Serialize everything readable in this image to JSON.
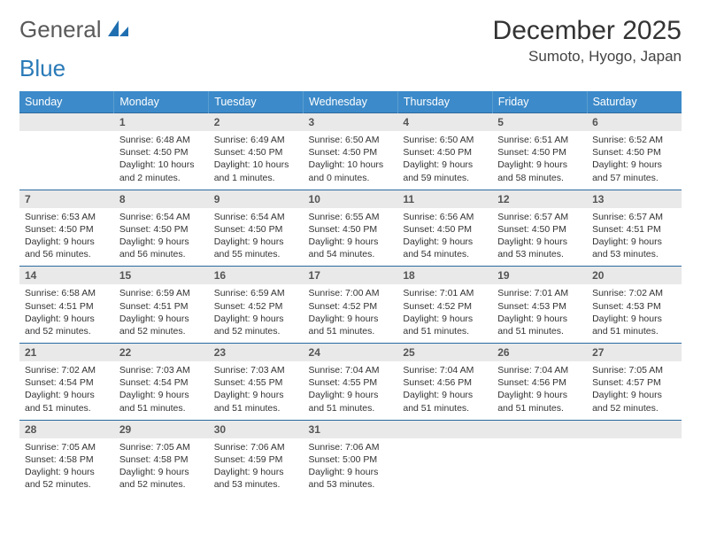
{
  "brand": {
    "part1": "General",
    "part2": "Blue"
  },
  "title": "December 2025",
  "location": "Sumoto, Hyogo, Japan",
  "colors": {
    "header_bg": "#3c8ac9",
    "header_text": "#ffffff",
    "daynum_bg": "#e9e9e9",
    "daynum_text": "#555555",
    "body_text": "#333333",
    "row_border": "#2a6aa0",
    "logo_gray": "#5a5a5a",
    "logo_blue": "#2a7ab8"
  },
  "typography": {
    "month_title_size": 30,
    "location_size": 17,
    "weekday_size": 12.5,
    "daynum_size": 12,
    "cell_body_size": 10.5
  },
  "weekdays": [
    "Sunday",
    "Monday",
    "Tuesday",
    "Wednesday",
    "Thursday",
    "Friday",
    "Saturday"
  ],
  "start_offset": 1,
  "days": [
    {
      "n": 1,
      "sunrise": "6:48 AM",
      "sunset": "4:50 PM",
      "daylight": "10 hours and 2 minutes."
    },
    {
      "n": 2,
      "sunrise": "6:49 AM",
      "sunset": "4:50 PM",
      "daylight": "10 hours and 1 minutes."
    },
    {
      "n": 3,
      "sunrise": "6:50 AM",
      "sunset": "4:50 PM",
      "daylight": "10 hours and 0 minutes."
    },
    {
      "n": 4,
      "sunrise": "6:50 AM",
      "sunset": "4:50 PM",
      "daylight": "9 hours and 59 minutes."
    },
    {
      "n": 5,
      "sunrise": "6:51 AM",
      "sunset": "4:50 PM",
      "daylight": "9 hours and 58 minutes."
    },
    {
      "n": 6,
      "sunrise": "6:52 AM",
      "sunset": "4:50 PM",
      "daylight": "9 hours and 57 minutes."
    },
    {
      "n": 7,
      "sunrise": "6:53 AM",
      "sunset": "4:50 PM",
      "daylight": "9 hours and 56 minutes."
    },
    {
      "n": 8,
      "sunrise": "6:54 AM",
      "sunset": "4:50 PM",
      "daylight": "9 hours and 56 minutes."
    },
    {
      "n": 9,
      "sunrise": "6:54 AM",
      "sunset": "4:50 PM",
      "daylight": "9 hours and 55 minutes."
    },
    {
      "n": 10,
      "sunrise": "6:55 AM",
      "sunset": "4:50 PM",
      "daylight": "9 hours and 54 minutes."
    },
    {
      "n": 11,
      "sunrise": "6:56 AM",
      "sunset": "4:50 PM",
      "daylight": "9 hours and 54 minutes."
    },
    {
      "n": 12,
      "sunrise": "6:57 AM",
      "sunset": "4:50 PM",
      "daylight": "9 hours and 53 minutes."
    },
    {
      "n": 13,
      "sunrise": "6:57 AM",
      "sunset": "4:51 PM",
      "daylight": "9 hours and 53 minutes."
    },
    {
      "n": 14,
      "sunrise": "6:58 AM",
      "sunset": "4:51 PM",
      "daylight": "9 hours and 52 minutes."
    },
    {
      "n": 15,
      "sunrise": "6:59 AM",
      "sunset": "4:51 PM",
      "daylight": "9 hours and 52 minutes."
    },
    {
      "n": 16,
      "sunrise": "6:59 AM",
      "sunset": "4:52 PM",
      "daylight": "9 hours and 52 minutes."
    },
    {
      "n": 17,
      "sunrise": "7:00 AM",
      "sunset": "4:52 PM",
      "daylight": "9 hours and 51 minutes."
    },
    {
      "n": 18,
      "sunrise": "7:01 AM",
      "sunset": "4:52 PM",
      "daylight": "9 hours and 51 minutes."
    },
    {
      "n": 19,
      "sunrise": "7:01 AM",
      "sunset": "4:53 PM",
      "daylight": "9 hours and 51 minutes."
    },
    {
      "n": 20,
      "sunrise": "7:02 AM",
      "sunset": "4:53 PM",
      "daylight": "9 hours and 51 minutes."
    },
    {
      "n": 21,
      "sunrise": "7:02 AM",
      "sunset": "4:54 PM",
      "daylight": "9 hours and 51 minutes."
    },
    {
      "n": 22,
      "sunrise": "7:03 AM",
      "sunset": "4:54 PM",
      "daylight": "9 hours and 51 minutes."
    },
    {
      "n": 23,
      "sunrise": "7:03 AM",
      "sunset": "4:55 PM",
      "daylight": "9 hours and 51 minutes."
    },
    {
      "n": 24,
      "sunrise": "7:04 AM",
      "sunset": "4:55 PM",
      "daylight": "9 hours and 51 minutes."
    },
    {
      "n": 25,
      "sunrise": "7:04 AM",
      "sunset": "4:56 PM",
      "daylight": "9 hours and 51 minutes."
    },
    {
      "n": 26,
      "sunrise": "7:04 AM",
      "sunset": "4:56 PM",
      "daylight": "9 hours and 51 minutes."
    },
    {
      "n": 27,
      "sunrise": "7:05 AM",
      "sunset": "4:57 PM",
      "daylight": "9 hours and 52 minutes."
    },
    {
      "n": 28,
      "sunrise": "7:05 AM",
      "sunset": "4:58 PM",
      "daylight": "9 hours and 52 minutes."
    },
    {
      "n": 29,
      "sunrise": "7:05 AM",
      "sunset": "4:58 PM",
      "daylight": "9 hours and 52 minutes."
    },
    {
      "n": 30,
      "sunrise": "7:06 AM",
      "sunset": "4:59 PM",
      "daylight": "9 hours and 53 minutes."
    },
    {
      "n": 31,
      "sunrise": "7:06 AM",
      "sunset": "5:00 PM",
      "daylight": "9 hours and 53 minutes."
    }
  ],
  "labels": {
    "sunrise": "Sunrise:",
    "sunset": "Sunset:",
    "daylight": "Daylight:"
  }
}
